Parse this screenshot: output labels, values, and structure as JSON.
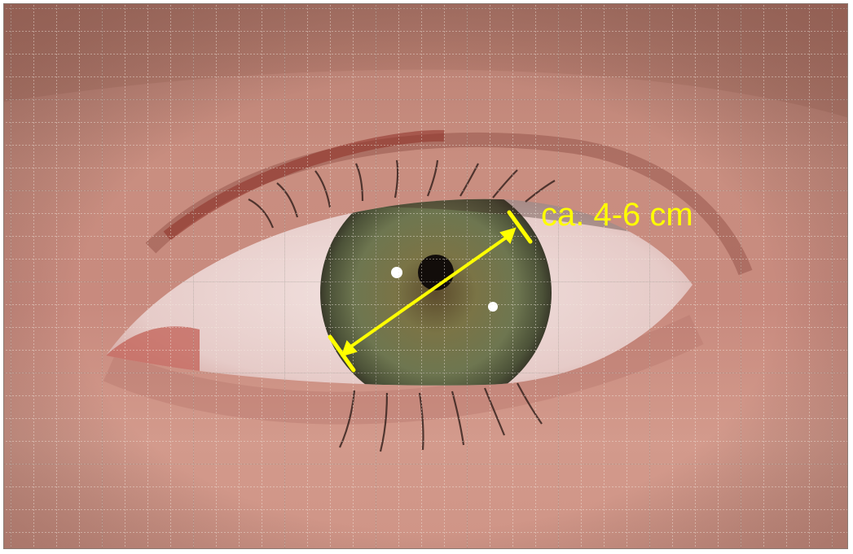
{
  "annotation": {
    "label": "ca. 4-6 cm",
    "color": "#ffff00"
  },
  "image": {
    "subject": "eye-closeup",
    "grid_overlay": true,
    "colors": {
      "skin": "#c8897a",
      "iris": "#6b7048",
      "pupil": "#120d0a",
      "sclera": "#ead8d6",
      "grid": "#f2e6dc"
    }
  }
}
